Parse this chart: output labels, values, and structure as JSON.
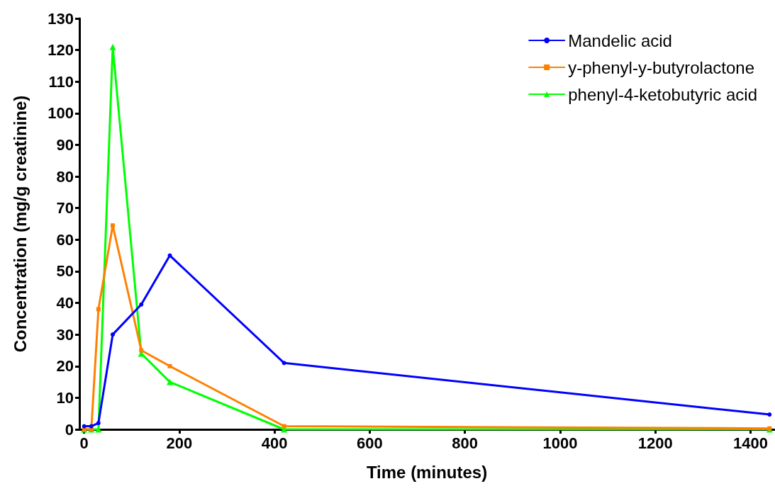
{
  "chart_data": {
    "type": "line",
    "xlabel": "Time (minutes)",
    "ylabel": "Concentration (mg/g creatinine)",
    "x": [
      0,
      15,
      30,
      60,
      120,
      180,
      420,
      1440
    ],
    "series": [
      {
        "name": "Mandelic acid",
        "color": "#0000ff",
        "marker": "circle",
        "values": [
          1,
          1,
          2,
          30,
          39.5,
          55,
          21,
          4.7
        ]
      },
      {
        "name": "y-phenyl-y-butyrolactone",
        "color": "#ff8000",
        "marker": "square",
        "values": [
          0,
          0,
          38,
          64.5,
          25,
          20,
          1,
          0.3
        ]
      },
      {
        "name": "phenyl-4-ketobutyric acid",
        "color": "#00ff00",
        "marker": "triangle",
        "values": [
          0,
          0,
          0,
          121,
          24,
          15,
          0,
          0
        ]
      }
    ],
    "xlim": [
      -10,
      1450
    ],
    "xticks": [
      0,
      200,
      400,
      600,
      800,
      1000,
      1200,
      1400
    ],
    "ylim": [
      0,
      130
    ],
    "yticks": [
      0,
      10,
      20,
      30,
      40,
      50,
      60,
      70,
      80,
      90,
      100,
      110,
      120,
      130
    ],
    "grid": false,
    "legend": "top right",
    "line_style": "solid"
  }
}
